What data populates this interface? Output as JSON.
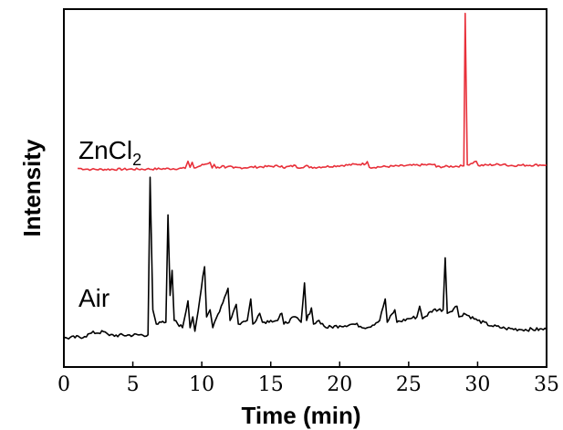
{
  "chart_data": {
    "type": "line",
    "xlabel": "Time (min)",
    "ylabel": "Intensity",
    "xlim": [
      0,
      35
    ],
    "ylim": [
      0,
      1
    ],
    "xticks": [
      0,
      5,
      10,
      15,
      20,
      25,
      30,
      35
    ],
    "grid": false,
    "y_tick_labels": "none",
    "series": [
      {
        "name": "ZnCl",
        "name_subscript": "2",
        "color": "#e8303a",
        "baseline": 0.56,
        "noise": 0.003,
        "points": [
          [
            1.0,
            0.555
          ],
          [
            2.0,
            0.552
          ],
          [
            6.0,
            0.553
          ],
          [
            8.8,
            0.555
          ],
          [
            9.0,
            0.575
          ],
          [
            9.15,
            0.558
          ],
          [
            9.3,
            0.572
          ],
          [
            9.45,
            0.556
          ],
          [
            10.6,
            0.572
          ],
          [
            10.75,
            0.556
          ],
          [
            10.9,
            0.566
          ],
          [
            11.05,
            0.556
          ],
          [
            11.6,
            0.562
          ],
          [
            11.7,
            0.556
          ],
          [
            12.2,
            0.56
          ],
          [
            12.3,
            0.556
          ],
          [
            15.8,
            0.562
          ],
          [
            15.9,
            0.557
          ],
          [
            16.8,
            0.563
          ],
          [
            16.9,
            0.557
          ],
          [
            17.7,
            0.562
          ],
          [
            17.8,
            0.557
          ],
          [
            21.9,
            0.568
          ],
          [
            22.0,
            0.574
          ],
          [
            22.15,
            0.558
          ],
          [
            26.9,
            0.566
          ],
          [
            27.0,
            0.559
          ],
          [
            29.0,
            0.562
          ],
          [
            29.1,
            0.988
          ],
          [
            29.25,
            0.565
          ],
          [
            29.9,
            0.575
          ],
          [
            30.05,
            0.563
          ],
          [
            32.0,
            0.567
          ],
          [
            32.1,
            0.563
          ],
          [
            35.0,
            0.565
          ]
        ]
      },
      {
        "name": "Air",
        "color": "#000000",
        "baseline": 0.1,
        "noise": 0.005,
        "points": [
          [
            0.0,
            0.08
          ],
          [
            1.5,
            0.085
          ],
          [
            2.0,
            0.095
          ],
          [
            3.0,
            0.098
          ],
          [
            3.3,
            0.088
          ],
          [
            6.1,
            0.09
          ],
          [
            6.25,
            0.53
          ],
          [
            6.45,
            0.16
          ],
          [
            6.7,
            0.12
          ],
          [
            7.4,
            0.125
          ],
          [
            7.55,
            0.425
          ],
          [
            7.7,
            0.2
          ],
          [
            7.85,
            0.27
          ],
          [
            8.0,
            0.13
          ],
          [
            8.6,
            0.11
          ],
          [
            9.0,
            0.185
          ],
          [
            9.15,
            0.11
          ],
          [
            9.35,
            0.14
          ],
          [
            9.5,
            0.1
          ],
          [
            10.2,
            0.28
          ],
          [
            10.35,
            0.14
          ],
          [
            10.6,
            0.16
          ],
          [
            10.8,
            0.11
          ],
          [
            11.9,
            0.22
          ],
          [
            12.05,
            0.13
          ],
          [
            12.5,
            0.175
          ],
          [
            12.65,
            0.12
          ],
          [
            13.3,
            0.13
          ],
          [
            13.55,
            0.19
          ],
          [
            13.7,
            0.12
          ],
          [
            14.2,
            0.15
          ],
          [
            14.4,
            0.125
          ],
          [
            15.0,
            0.13
          ],
          [
            15.5,
            0.13
          ],
          [
            15.8,
            0.15
          ],
          [
            15.95,
            0.12
          ],
          [
            16.8,
            0.14
          ],
          [
            17.2,
            0.125
          ],
          [
            17.45,
            0.235
          ],
          [
            17.6,
            0.13
          ],
          [
            17.95,
            0.165
          ],
          [
            18.1,
            0.12
          ],
          [
            18.5,
            0.13
          ],
          [
            19.0,
            0.11
          ],
          [
            20.0,
            0.115
          ],
          [
            21.0,
            0.12
          ],
          [
            22.0,
            0.11
          ],
          [
            22.9,
            0.13
          ],
          [
            23.3,
            0.19
          ],
          [
            23.45,
            0.125
          ],
          [
            24.0,
            0.16
          ],
          [
            24.15,
            0.125
          ],
          [
            25.0,
            0.135
          ],
          [
            25.6,
            0.14
          ],
          [
            25.8,
            0.17
          ],
          [
            26.0,
            0.135
          ],
          [
            26.8,
            0.16
          ],
          [
            27.5,
            0.16
          ],
          [
            27.65,
            0.305
          ],
          [
            27.8,
            0.15
          ],
          [
            28.5,
            0.17
          ],
          [
            28.65,
            0.14
          ],
          [
            29.0,
            0.15
          ],
          [
            30.0,
            0.13
          ],
          [
            31.0,
            0.115
          ],
          [
            32.0,
            0.108
          ],
          [
            33.0,
            0.105
          ],
          [
            35.0,
            0.105
          ]
        ]
      }
    ]
  }
}
